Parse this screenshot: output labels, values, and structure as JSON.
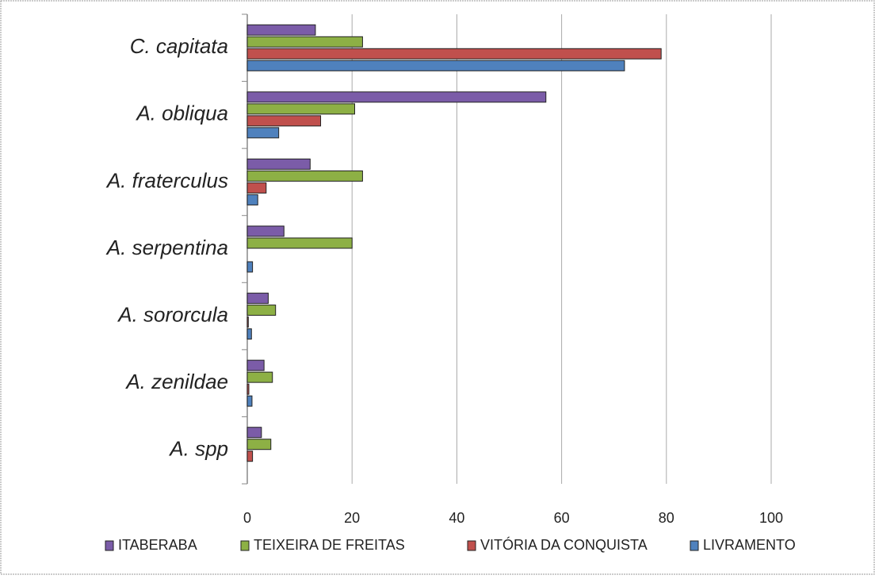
{
  "chart_data": {
    "type": "hbar",
    "categories": [
      "C. capitata",
      "A. obliqua",
      "A. fraterculus",
      "A. serpentina",
      "A. sororcula",
      "A. zenildae",
      "A. spp"
    ],
    "series": [
      {
        "name": "ITABERABA",
        "color": "#7b5ca8",
        "values": [
          13,
          57,
          12,
          7,
          4,
          3.2,
          2.7
        ]
      },
      {
        "name": "TEIXEIRA DE FREITAS",
        "color": "#8db045",
        "values": [
          22,
          20.5,
          22,
          20,
          5.4,
          4.8,
          4.5
        ]
      },
      {
        "name": "VITÓRIA DA CONQUISTA",
        "color": "#c0504d",
        "values": [
          79,
          14,
          3.6,
          0,
          0.2,
          0.3,
          1
        ]
      },
      {
        "name": "LIVRAMENTO",
        "color": "#4f81bd",
        "values": [
          72,
          6,
          2,
          1,
          0.8,
          0.9,
          0
        ]
      }
    ],
    "xlim": [
      0,
      100
    ],
    "xticks": [
      0,
      20,
      40,
      60,
      80,
      100
    ],
    "grid": true,
    "legend": "bottom"
  }
}
